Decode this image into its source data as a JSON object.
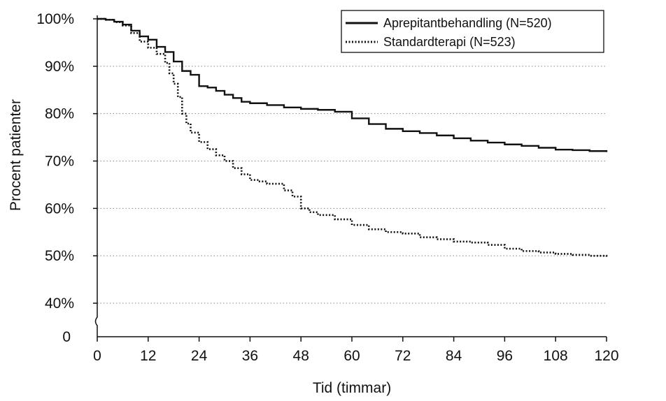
{
  "chart_data": {
    "type": "line",
    "xlabel": "Tid (timmar)",
    "ylabel": "Procent patienter",
    "xlim": [
      0,
      120
    ],
    "ylim": [
      40,
      100
    ],
    "x_ticks": [
      "0",
      "12",
      "24",
      "36",
      "48",
      "60",
      "72",
      "84",
      "96",
      "108",
      "120"
    ],
    "y_ticks": [
      "100%",
      "90%",
      "80%",
      "70%",
      "60%",
      "50%",
      "40%"
    ],
    "y_zero_label": "0",
    "grid": "horizontal-dotted",
    "legend_position": "top-right",
    "series": [
      {
        "name": "Aprepitantbehandling (N=520)",
        "style": "solid",
        "x": [
          0,
          2,
          4,
          6,
          8,
          10,
          12,
          14,
          16,
          18,
          20,
          22,
          24,
          26,
          28,
          30,
          32,
          34,
          36,
          40,
          44,
          48,
          52,
          56,
          60,
          64,
          68,
          72,
          76,
          80,
          84,
          88,
          92,
          96,
          100,
          104,
          108,
          112,
          116,
          120
        ],
        "values": [
          100,
          99.8,
          99.4,
          98.8,
          97.5,
          96.3,
          95.6,
          94.1,
          93.0,
          91.0,
          89.0,
          88.2,
          85.8,
          85.5,
          84.8,
          84.0,
          83.3,
          82.5,
          82.2,
          81.8,
          81.3,
          81.0,
          80.8,
          80.4,
          79.0,
          77.8,
          76.8,
          76.3,
          75.9,
          75.4,
          74.8,
          74.3,
          73.9,
          73.5,
          73.2,
          72.8,
          72.4,
          72.3,
          72.1,
          71.9
        ]
      },
      {
        "name": "Standardterapi (N=523)",
        "style": "dotted",
        "x": [
          0,
          2,
          4,
          6,
          8,
          10,
          12,
          14,
          16,
          17,
          18,
          19,
          20,
          21,
          22,
          24,
          26,
          28,
          30,
          32,
          34,
          36,
          38,
          40,
          44,
          46,
          48,
          50,
          52,
          56,
          60,
          64,
          68,
          72,
          76,
          80,
          84,
          88,
          92,
          96,
          100,
          104,
          108,
          112,
          116,
          120
        ],
        "values": [
          100,
          99.8,
          99.3,
          98.6,
          97.0,
          95.2,
          93.9,
          92.6,
          90.7,
          88.5,
          86.3,
          83.5,
          80.0,
          77.9,
          76.0,
          74.0,
          72.5,
          71.2,
          70.0,
          68.5,
          67.2,
          66.0,
          65.7,
          65.2,
          63.8,
          62.5,
          60.0,
          59.2,
          58.6,
          57.7,
          56.5,
          55.6,
          55.0,
          54.7,
          53.9,
          53.5,
          53.0,
          52.8,
          52.3,
          51.5,
          51.0,
          50.7,
          50.4,
          50.2,
          50.0,
          49.8
        ]
      }
    ]
  }
}
